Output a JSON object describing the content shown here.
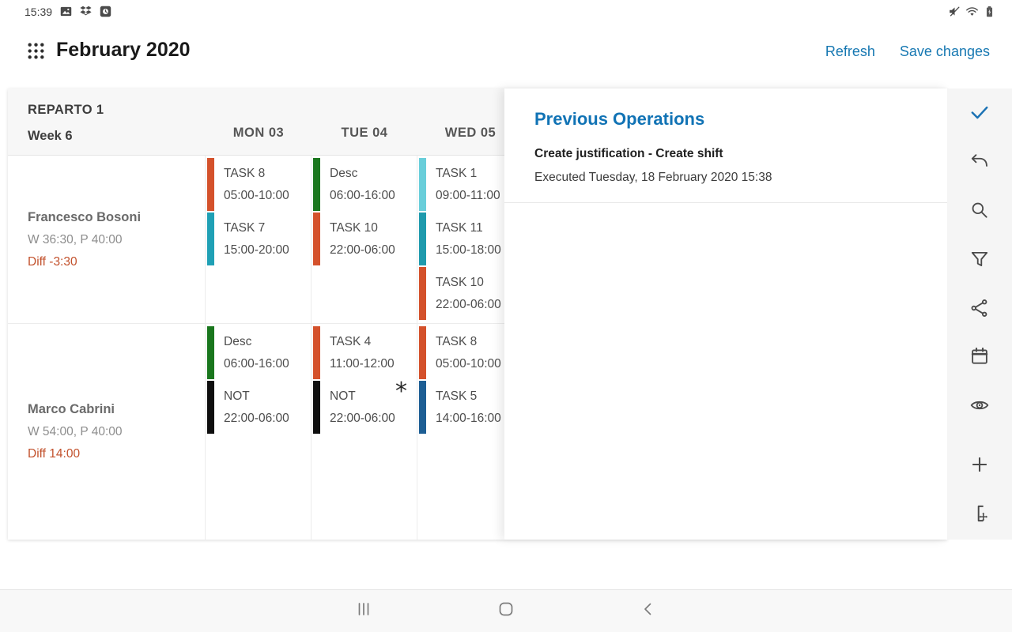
{
  "colors": {
    "accent_blue": "#1b72b4",
    "link_blue": "#1778b2",
    "diff_orange": "#c2512c",
    "icon_gray": "#4a4a4a"
  },
  "status_bar": {
    "time": "15:39",
    "left_icons": [
      "image-icon",
      "dropbox-icon",
      "gallery-app-icon"
    ],
    "right_icons": [
      "mute-icon",
      "wifi-icon",
      "battery-charging-icon"
    ]
  },
  "app_header": {
    "title": "February 2020",
    "actions": [
      {
        "id": "refresh",
        "label": "Refresh"
      },
      {
        "id": "save",
        "label": "Save changes"
      }
    ]
  },
  "schedule": {
    "group": "REPARTO 1",
    "week": "Week 6",
    "days": [
      {
        "label": "MON 03"
      },
      {
        "label": "TUE 04"
      },
      {
        "label": "WED 05"
      }
    ],
    "employees": [
      {
        "name": "Francesco Bosoni",
        "hours": "W 36:30, P 40:00",
        "diff": "Diff -3:30",
        "cells": [
          {
            "tasks": [
              {
                "name": "TASK 8",
                "time": "05:00-10:00",
                "color": "#d4512b"
              },
              {
                "name": "TASK 7",
                "time": "15:00-20:00",
                "color": "#1fa0b5"
              }
            ]
          },
          {
            "tasks": [
              {
                "name": "Desc",
                "time": "06:00-16:00",
                "color": "#19761d"
              },
              {
                "name": "TASK 10",
                "time": "22:00-06:00",
                "color": "#d4512b"
              }
            ]
          },
          {
            "tasks": [
              {
                "name": "TASK 1",
                "time": "09:00-11:00",
                "color": "#69ceda"
              },
              {
                "name": "TASK 11",
                "time": "15:00-18:00",
                "color": "#1f9aad"
              },
              {
                "name": "TASK 10",
                "time": "22:00-06:00",
                "color": "#d4512b"
              }
            ]
          }
        ]
      },
      {
        "name": "Marco Cabrini",
        "hours": "W 54:00, P 40:00",
        "diff": "Diff 14:00",
        "cells": [
          {
            "tasks": [
              {
                "name": "Desc",
                "time": "06:00-16:00",
                "color": "#19761d"
              },
              {
                "name": "NOT",
                "time": "22:00-06:00",
                "color": "#0e0e0e"
              }
            ]
          },
          {
            "tasks": [
              {
                "name": "TASK 4",
                "time": "11:00-12:00",
                "color": "#d4512b"
              },
              {
                "name": "NOT",
                "time": "22:00-06:00",
                "color": "#0e0e0e",
                "marker": "*"
              }
            ]
          },
          {
            "tasks": [
              {
                "name": "TASK 8",
                "time": "05:00-10:00",
                "color": "#d4512b"
              },
              {
                "name": "TASK 5",
                "time": "14:00-16:00",
                "color": "#1d5e94"
              }
            ]
          }
        ]
      }
    ]
  },
  "operations_panel": {
    "title": "Previous Operations",
    "entries": [
      {
        "title": "Create justification - Create shift",
        "executed": "Executed Tuesday, 18 February 2020 15:38"
      }
    ]
  },
  "side_toolbar": {
    "icons": [
      {
        "name": "check-icon",
        "active": true
      },
      {
        "name": "undo-icon"
      },
      {
        "name": "search-icon"
      },
      {
        "name": "filter-icon"
      },
      {
        "name": "share-icon"
      },
      {
        "name": "calendar-icon"
      },
      {
        "name": "eye-icon"
      },
      {
        "name": "plus-icon",
        "gap_before": true
      },
      {
        "name": "insert-shift-icon"
      }
    ]
  },
  "nav_bar": {
    "icons": [
      "recents-icon",
      "home-icon",
      "back-icon"
    ]
  }
}
